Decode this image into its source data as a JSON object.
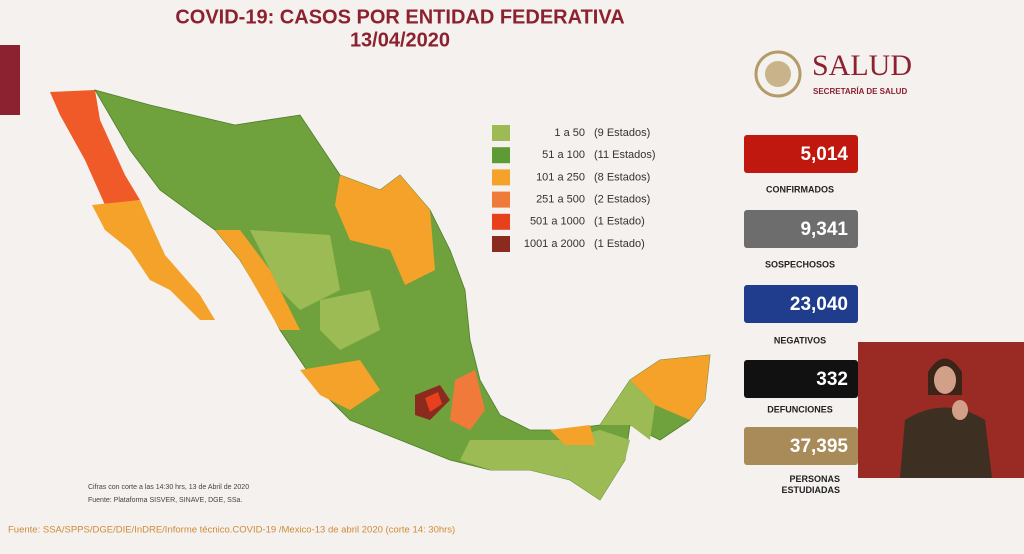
{
  "header": {
    "title": "COVID-19: CASOS POR ENTIDAD FEDERATIVA",
    "date": "13/04/2020"
  },
  "logo": {
    "name": "SALUD",
    "subtitle": "SECRETARÍA DE SALUD"
  },
  "legend": [
    {
      "range": "1 a 50",
      "count": "(9 Estados)",
      "color": "#9dbb54"
    },
    {
      "range": "51 a 100",
      "count": "(11 Estados)",
      "color": "#5e9a35"
    },
    {
      "range": "101 a 250",
      "count": "(8 Estados)",
      "color": "#f5a22a"
    },
    {
      "range": "251 a 500",
      "count": "(2 Estados)",
      "color": "#f07a3a"
    },
    {
      "range": "501 a 1000",
      "count": "(1 Estado)",
      "color": "#e8401c"
    },
    {
      "range": "1001 a 2000",
      "count": "(1 Estado)",
      "color": "#8b2a1e"
    }
  ],
  "stats": [
    {
      "value": "5,014",
      "label": "CONFIRMADOS"
    },
    {
      "value": "9,341",
      "label": "SOSPECHOSOS"
    },
    {
      "value": "23,040",
      "label": "NEGATIVOS"
    },
    {
      "value": "332",
      "label": "DEFUNCIONES"
    },
    {
      "value": "37,395",
      "label": "PERSONAS ESTUDIADAS"
    }
  ],
  "notes": [
    "Cifras con corte a las 14:30 hrs, 13 de Abril de 2020",
    "Fuente: Plataforma SISVER, SINAVE, DGE, SSa."
  ],
  "source": "Fuente: SSA/SPPS/DGE/DIE/InDRE/Informe técnico.COVID-19 /Mexico-13 de abril 2020 (corte 14: 30hrs)"
}
